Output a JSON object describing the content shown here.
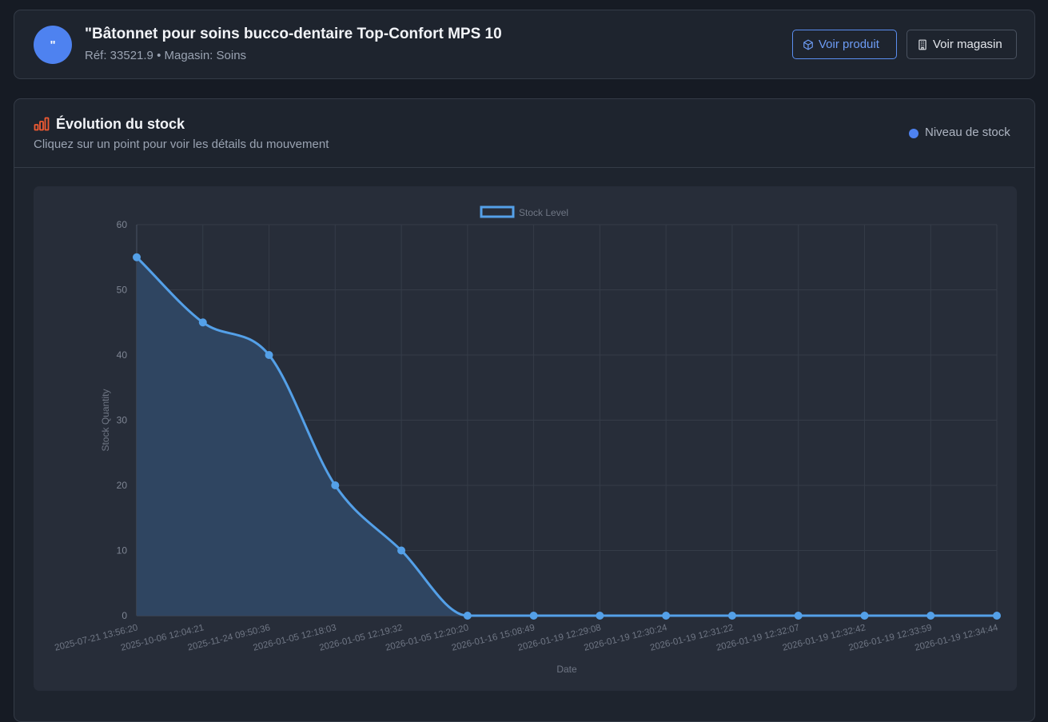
{
  "header": {
    "avatar_text": "\"",
    "title": "\"Bâtonnet pour soins bucco-dentaire Top-Confort MPS 10",
    "meta": "Réf: 33521.9 • Magasin: Soins",
    "view_product_label": "Voir produit",
    "view_store_label": "Voir magasin"
  },
  "chart_section": {
    "title": "Évolution du stock",
    "subtitle": "Cliquez sur un point pour voir les détails du mouvement",
    "legend_label": "Niveau de stock"
  },
  "icons": {
    "view_product": "cube-icon",
    "view_store": "building-icon",
    "section": "bar-chart-icon"
  },
  "colors": {
    "accent": "#4e82f0",
    "line": "#54a0e8",
    "fill": "#2f4561",
    "section_icon": "#ef5a32"
  },
  "chart_data": {
    "type": "line",
    "title": "",
    "legend": {
      "entries": [
        "Stock Level"
      ],
      "position": "top"
    },
    "xlabel": "Date",
    "ylabel": "Stock Quantity",
    "ylim": [
      0,
      60
    ],
    "yticks": [
      0,
      10,
      20,
      30,
      40,
      50,
      60
    ],
    "grid": true,
    "filled": true,
    "x": [
      "2025-07-21 13:56:20",
      "2025-10-06 12:04:21",
      "2025-11-24 09:50:36",
      "2026-01-05 12:18:03",
      "2026-01-05 12:19:32",
      "2026-01-05 12:20:20",
      "2026-01-16 15:08:49",
      "2026-01-19 12:29:08",
      "2026-01-19 12:30:24",
      "2026-01-19 12:31:22",
      "2026-01-19 12:32:07",
      "2026-01-19 12:32:42",
      "2026-01-19 12:33:59",
      "2026-01-19 12:34:44"
    ],
    "series": [
      {
        "name": "Stock Level",
        "values": [
          55,
          45,
          40,
          20,
          10,
          0,
          0,
          0,
          0,
          0,
          0,
          0,
          0,
          0
        ]
      }
    ]
  }
}
